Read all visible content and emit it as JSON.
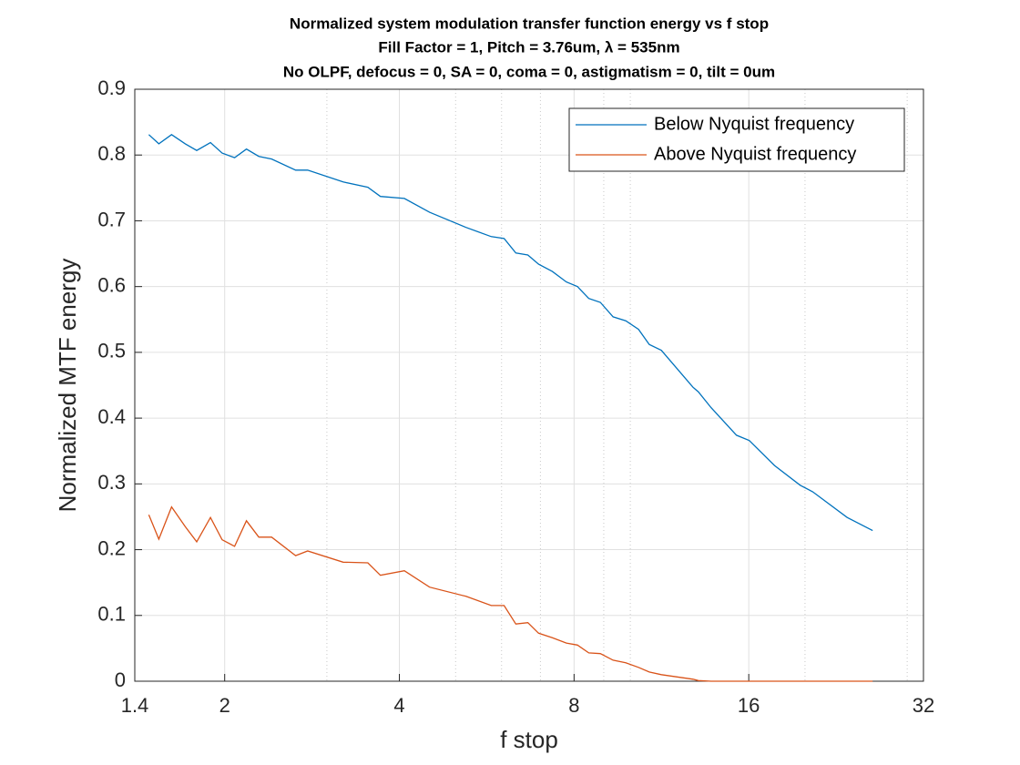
{
  "chart_data": {
    "type": "line",
    "title": "Normalized system modulation transfer function energy vs f stop",
    "subtitle": [
      "Fill Factor = 1, Pitch = 3.76um, λ = 535nm",
      "No OLPF, defocus = 0, SA = 0, coma = 0, astigmatism = 0, tilt = 0um"
    ],
    "x_label": "f stop",
    "y_label": "Normalized MTF energy",
    "x_scale": "log",
    "xlim": [
      1.4,
      32
    ],
    "xticks": [
      1.4,
      2,
      4,
      8,
      16,
      32
    ],
    "xminorticks": [
      3,
      5,
      6,
      7,
      9,
      10,
      20,
      30
    ],
    "ylim": [
      0,
      0.9
    ],
    "yticks": [
      0,
      0.1,
      0.2,
      0.3,
      0.4,
      0.5,
      0.6,
      0.7,
      0.8,
      0.9
    ],
    "grid": true,
    "legend": "upper right",
    "x": [
      1.48,
      1.54,
      1.62,
      1.71,
      1.79,
      1.89,
      1.98,
      2.08,
      2.18,
      2.29,
      2.41,
      2.65,
      2.78,
      3.2,
      3.53,
      3.71,
      4.08,
      4.51,
      5.21,
      5.76,
      6.06,
      6.35,
      6.66,
      6.95,
      7.34,
      7.76,
      8.11,
      8.48,
      8.88,
      9.34,
      9.82,
      10.33,
      10.78,
      11.31,
      12.82,
      13.1,
      13.78,
      15.24,
      16.03,
      17.72,
      19.62,
      20.62,
      23.64,
      26.16
    ],
    "series": [
      {
        "name": "Below Nyquist frequency",
        "color": "#0072BD",
        "values": [
          0.831,
          0.817,
          0.831,
          0.817,
          0.807,
          0.819,
          0.803,
          0.796,
          0.809,
          0.798,
          0.794,
          0.777,
          0.777,
          0.759,
          0.751,
          0.737,
          0.734,
          0.713,
          0.69,
          0.676,
          0.673,
          0.651,
          0.648,
          0.634,
          0.623,
          0.607,
          0.6,
          0.582,
          0.576,
          0.554,
          0.548,
          0.535,
          0.512,
          0.503,
          0.447,
          0.44,
          0.416,
          0.374,
          0.366,
          0.328,
          0.298,
          0.288,
          0.249,
          0.229
        ]
      },
      {
        "name": "Above Nyquist frequency",
        "color": "#D95319",
        "values": [
          0.253,
          0.216,
          0.265,
          0.235,
          0.212,
          0.249,
          0.215,
          0.205,
          0.244,
          0.219,
          0.219,
          0.191,
          0.198,
          0.181,
          0.18,
          0.161,
          0.168,
          0.143,
          0.129,
          0.115,
          0.115,
          0.087,
          0.089,
          0.073,
          0.066,
          0.058,
          0.055,
          0.043,
          0.042,
          0.032,
          0.028,
          0.021,
          0.014,
          0.01,
          0.003,
          0.001,
          0,
          0,
          0,
          0,
          0,
          0,
          0,
          0
        ]
      }
    ]
  }
}
